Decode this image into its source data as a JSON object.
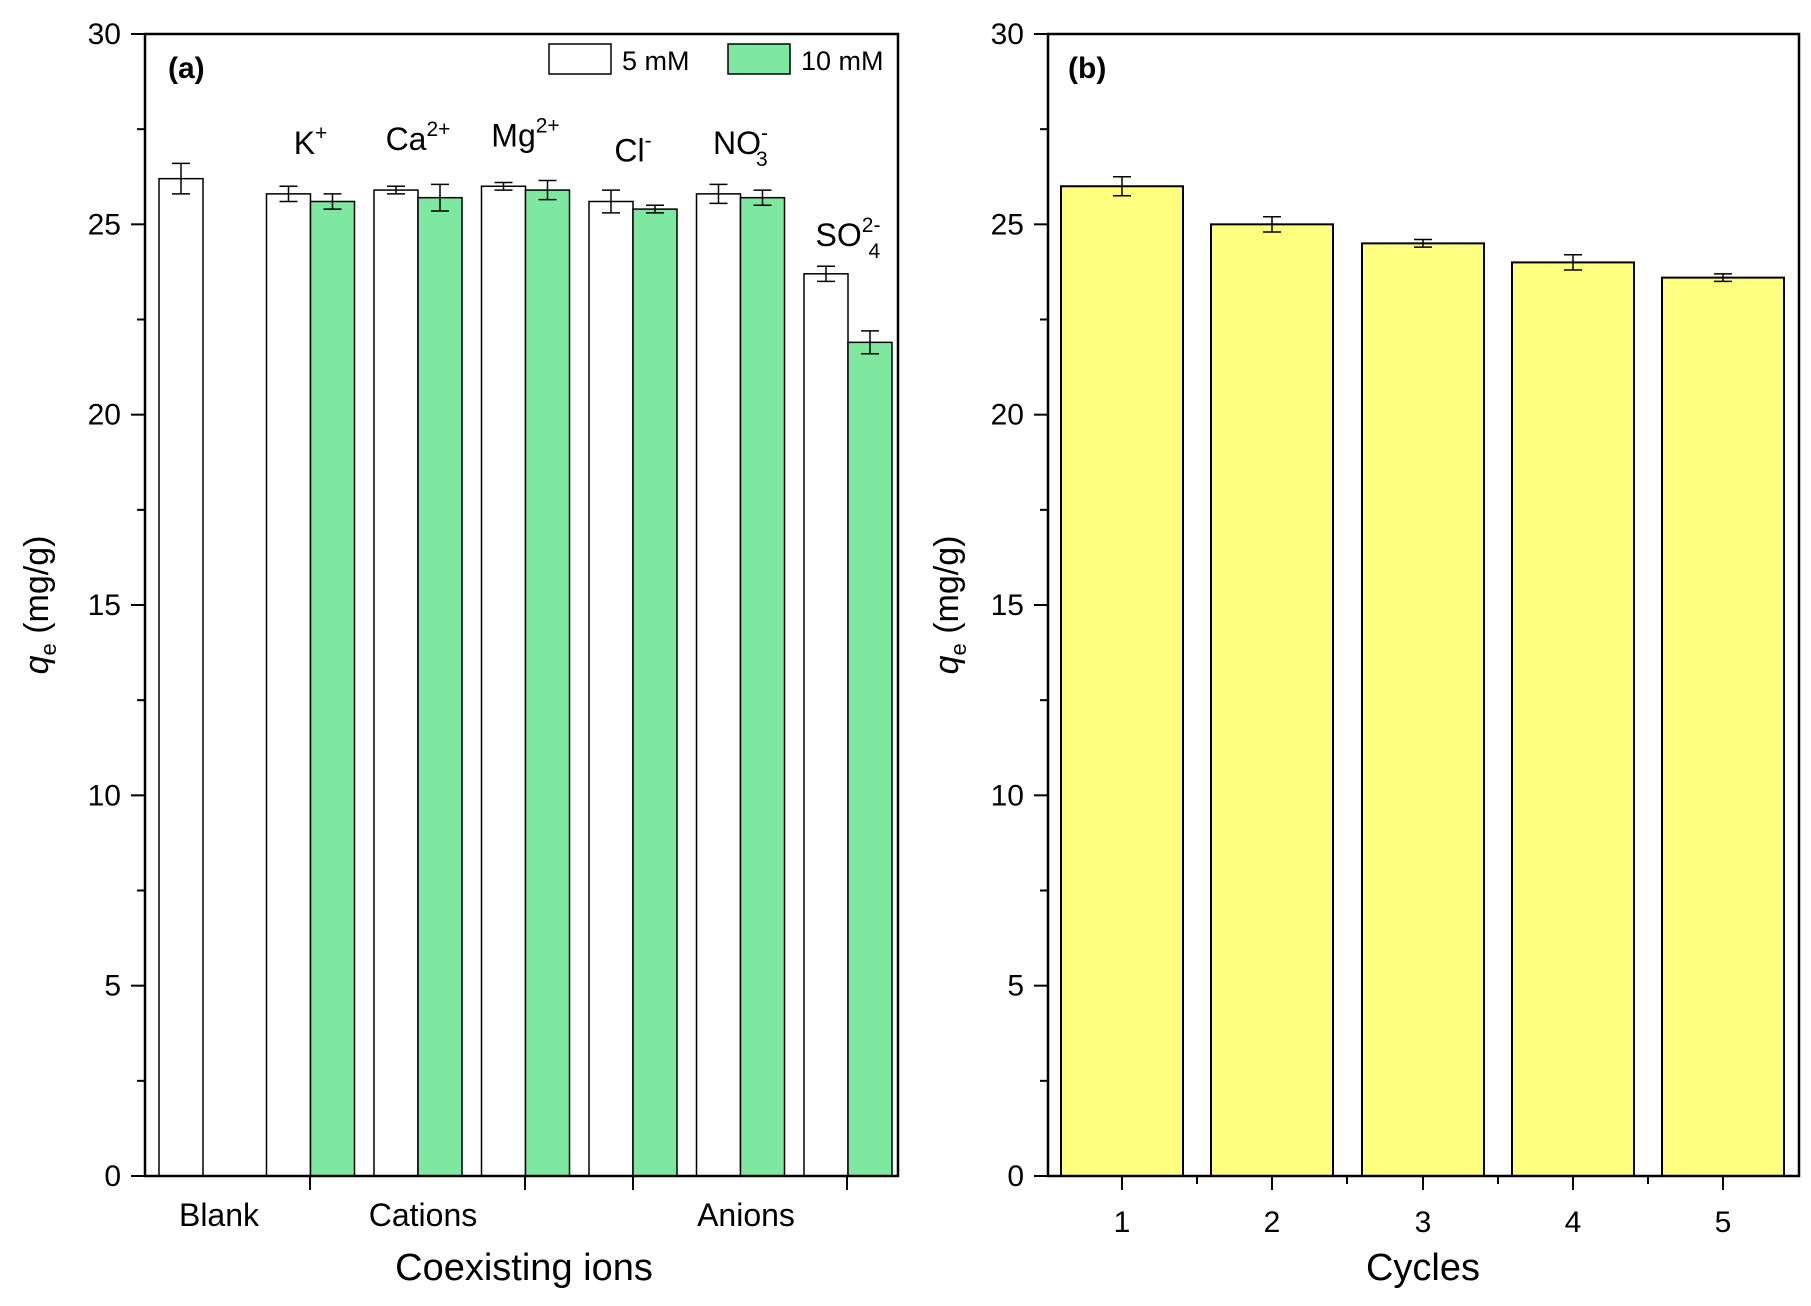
{
  "chart_data": [
    {
      "panel_label": "(a)",
      "type": "bar",
      "xlabel": "Coexisting ions",
      "ylabel": {
        "main": "q",
        "sub": "e",
        "unit": " (mg/g)"
      },
      "ylim": [
        0,
        30
      ],
      "yticks": [
        "0",
        "5",
        "10",
        "15",
        "20",
        "25",
        "30"
      ],
      "group_labels": [
        "Blank",
        "Cations",
        "Anions"
      ],
      "legend_position": "top-right",
      "series": [
        {
          "name": "5 mM",
          "color": "#ffffff"
        },
        {
          "name": "10 mM",
          "color": "#7fe8a0"
        }
      ],
      "categories": [
        {
          "id": "blank",
          "label": "",
          "values": [
            26.2,
            null
          ],
          "errors": [
            0.4,
            null
          ]
        },
        {
          "id": "k",
          "label": "K",
          "sup": "+",
          "values": [
            25.8,
            25.6
          ],
          "errors": [
            0.2,
            0.2
          ]
        },
        {
          "id": "ca",
          "label": "Ca",
          "sup": "2+",
          "values": [
            25.9,
            25.7
          ],
          "errors": [
            0.1,
            0.35
          ]
        },
        {
          "id": "mg",
          "label": "Mg",
          "sup": "2+",
          "values": [
            26.0,
            25.9
          ],
          "errors": [
            0.1,
            0.25
          ]
        },
        {
          "id": "cl",
          "label": "Cl",
          "sup": "-",
          "values": [
            25.6,
            25.4
          ],
          "errors": [
            0.3,
            0.1
          ]
        },
        {
          "id": "no3",
          "label": "NO",
          "sup": "-",
          "sub": "3",
          "values": [
            25.8,
            25.7
          ],
          "errors": [
            0.25,
            0.2
          ]
        },
        {
          "id": "so4",
          "label": "SO",
          "sup": "2-",
          "sub": "4",
          "values": [
            23.7,
            21.9
          ],
          "errors": [
            0.2,
            0.3
          ]
        }
      ]
    },
    {
      "panel_label": "(b)",
      "type": "bar",
      "xlabel": "Cycles",
      "ylabel": {
        "main": "q",
        "sub": "e",
        "unit": " (mg/g)"
      },
      "ylim": [
        0,
        30
      ],
      "yticks": [
        "0",
        "5",
        "10",
        "15",
        "20",
        "25",
        "30"
      ],
      "color": "#ffff80",
      "categories": [
        "1",
        "2",
        "3",
        "4",
        "5"
      ],
      "values": [
        26.0,
        25.0,
        24.5,
        24.0,
        23.6
      ],
      "errors": [
        0.25,
        0.2,
        0.1,
        0.2,
        0.1
      ]
    }
  ]
}
